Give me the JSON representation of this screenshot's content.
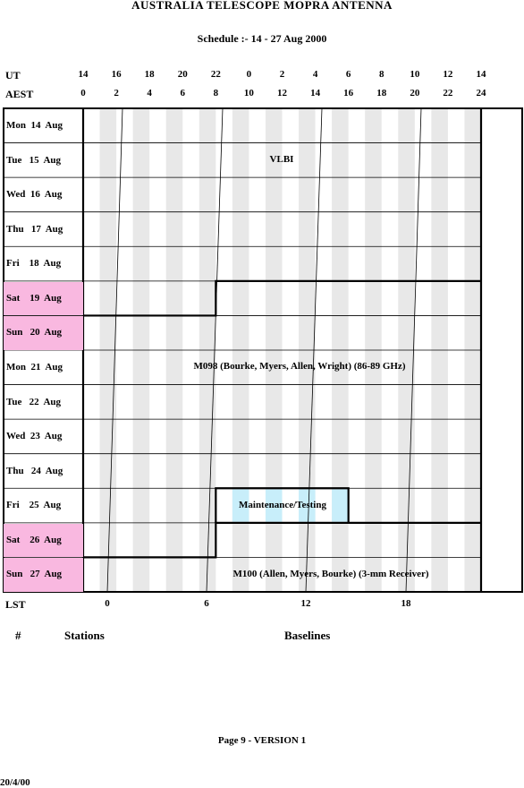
{
  "title": "AUSTRALIA TELESCOPE MOPRA ANTENNA",
  "subtitle": "Schedule :- 14 - 27 Aug 2000",
  "ut_label": "UT",
  "aest_label": "AEST",
  "lst_label": "LST",
  "ut_ticks": [
    "14",
    "16",
    "18",
    "20",
    "22",
    "0",
    "2",
    "4",
    "6",
    "8",
    "10",
    "12",
    "14"
  ],
  "aest_ticks": [
    "0",
    "2",
    "4",
    "6",
    "8",
    "10",
    "12",
    "14",
    "16",
    "18",
    "20",
    "22",
    "24"
  ],
  "lst_ticks": [
    "0",
    "6",
    "12",
    "18"
  ],
  "days": [
    {
      "label": "Mon  14  Aug",
      "weekend": false
    },
    {
      "label": "Tue   15  Aug",
      "weekend": false
    },
    {
      "label": "Wed  16  Aug",
      "weekend": false
    },
    {
      "label": "Thu   17  Aug",
      "weekend": false
    },
    {
      "label": "Fri    18  Aug",
      "weekend": false
    },
    {
      "label": "Sat    19  Aug",
      "weekend": true
    },
    {
      "label": "Sun   20  Aug",
      "weekend": true
    },
    {
      "label": "Mon  21  Aug",
      "weekend": false
    },
    {
      "label": "Tue   22  Aug",
      "weekend": false
    },
    {
      "label": "Wed  23  Aug",
      "weekend": false
    },
    {
      "label": "Thu   24  Aug",
      "weekend": false
    },
    {
      "label": "Fri    25  Aug",
      "weekend": false
    },
    {
      "label": "Sat    26  Aug",
      "weekend": true
    },
    {
      "label": "Sun   27  Aug",
      "weekend": true
    }
  ],
  "blocks": {
    "vlbi": "VLBI",
    "m098": "M098 (Bourke, Myers, Allen, Wright) (86-89 GHz)",
    "maintenance": "Maintenance/Testing",
    "m100": "M100 (Allen, Myers, Bourke) (3-mm Receiver)"
  },
  "sections": {
    "hash": "#",
    "stations": "Stations",
    "baselines": "Baselines"
  },
  "footer": {
    "page": "Page 9 - VERSION 1",
    "date": "20/4/00"
  },
  "colors": {
    "weekend": "#f9b8e0",
    "stripe": "#e8e8e8",
    "maintenance_stripe": "#c8eefa"
  }
}
